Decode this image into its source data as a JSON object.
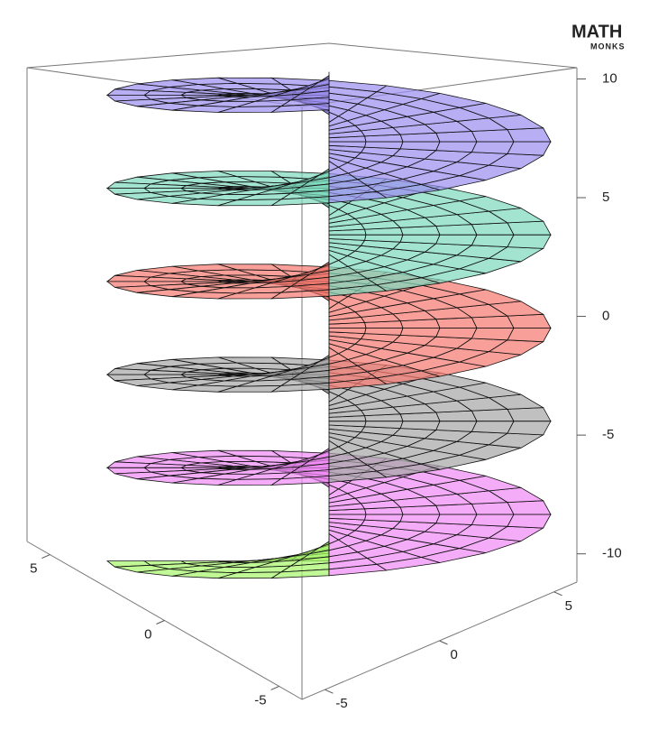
{
  "logo": {
    "word": "MATH",
    "sub": "MONKS"
  },
  "chart_data": {
    "type": "helicoid",
    "zlim": [
      -11,
      11.5
    ],
    "zticks": [
      -10,
      -5,
      0,
      5,
      10
    ],
    "xlim": [
      -6,
      6
    ],
    "xticks": [
      -5,
      0,
      5
    ],
    "ylim": [
      -6,
      6
    ],
    "yticks": [
      -5,
      0,
      5
    ],
    "colors": [
      "#a6f56b",
      "#f08cf5",
      "#a8a8a8",
      "#f47a70",
      "#7ed9be",
      "#9b8ff0"
    ]
  }
}
